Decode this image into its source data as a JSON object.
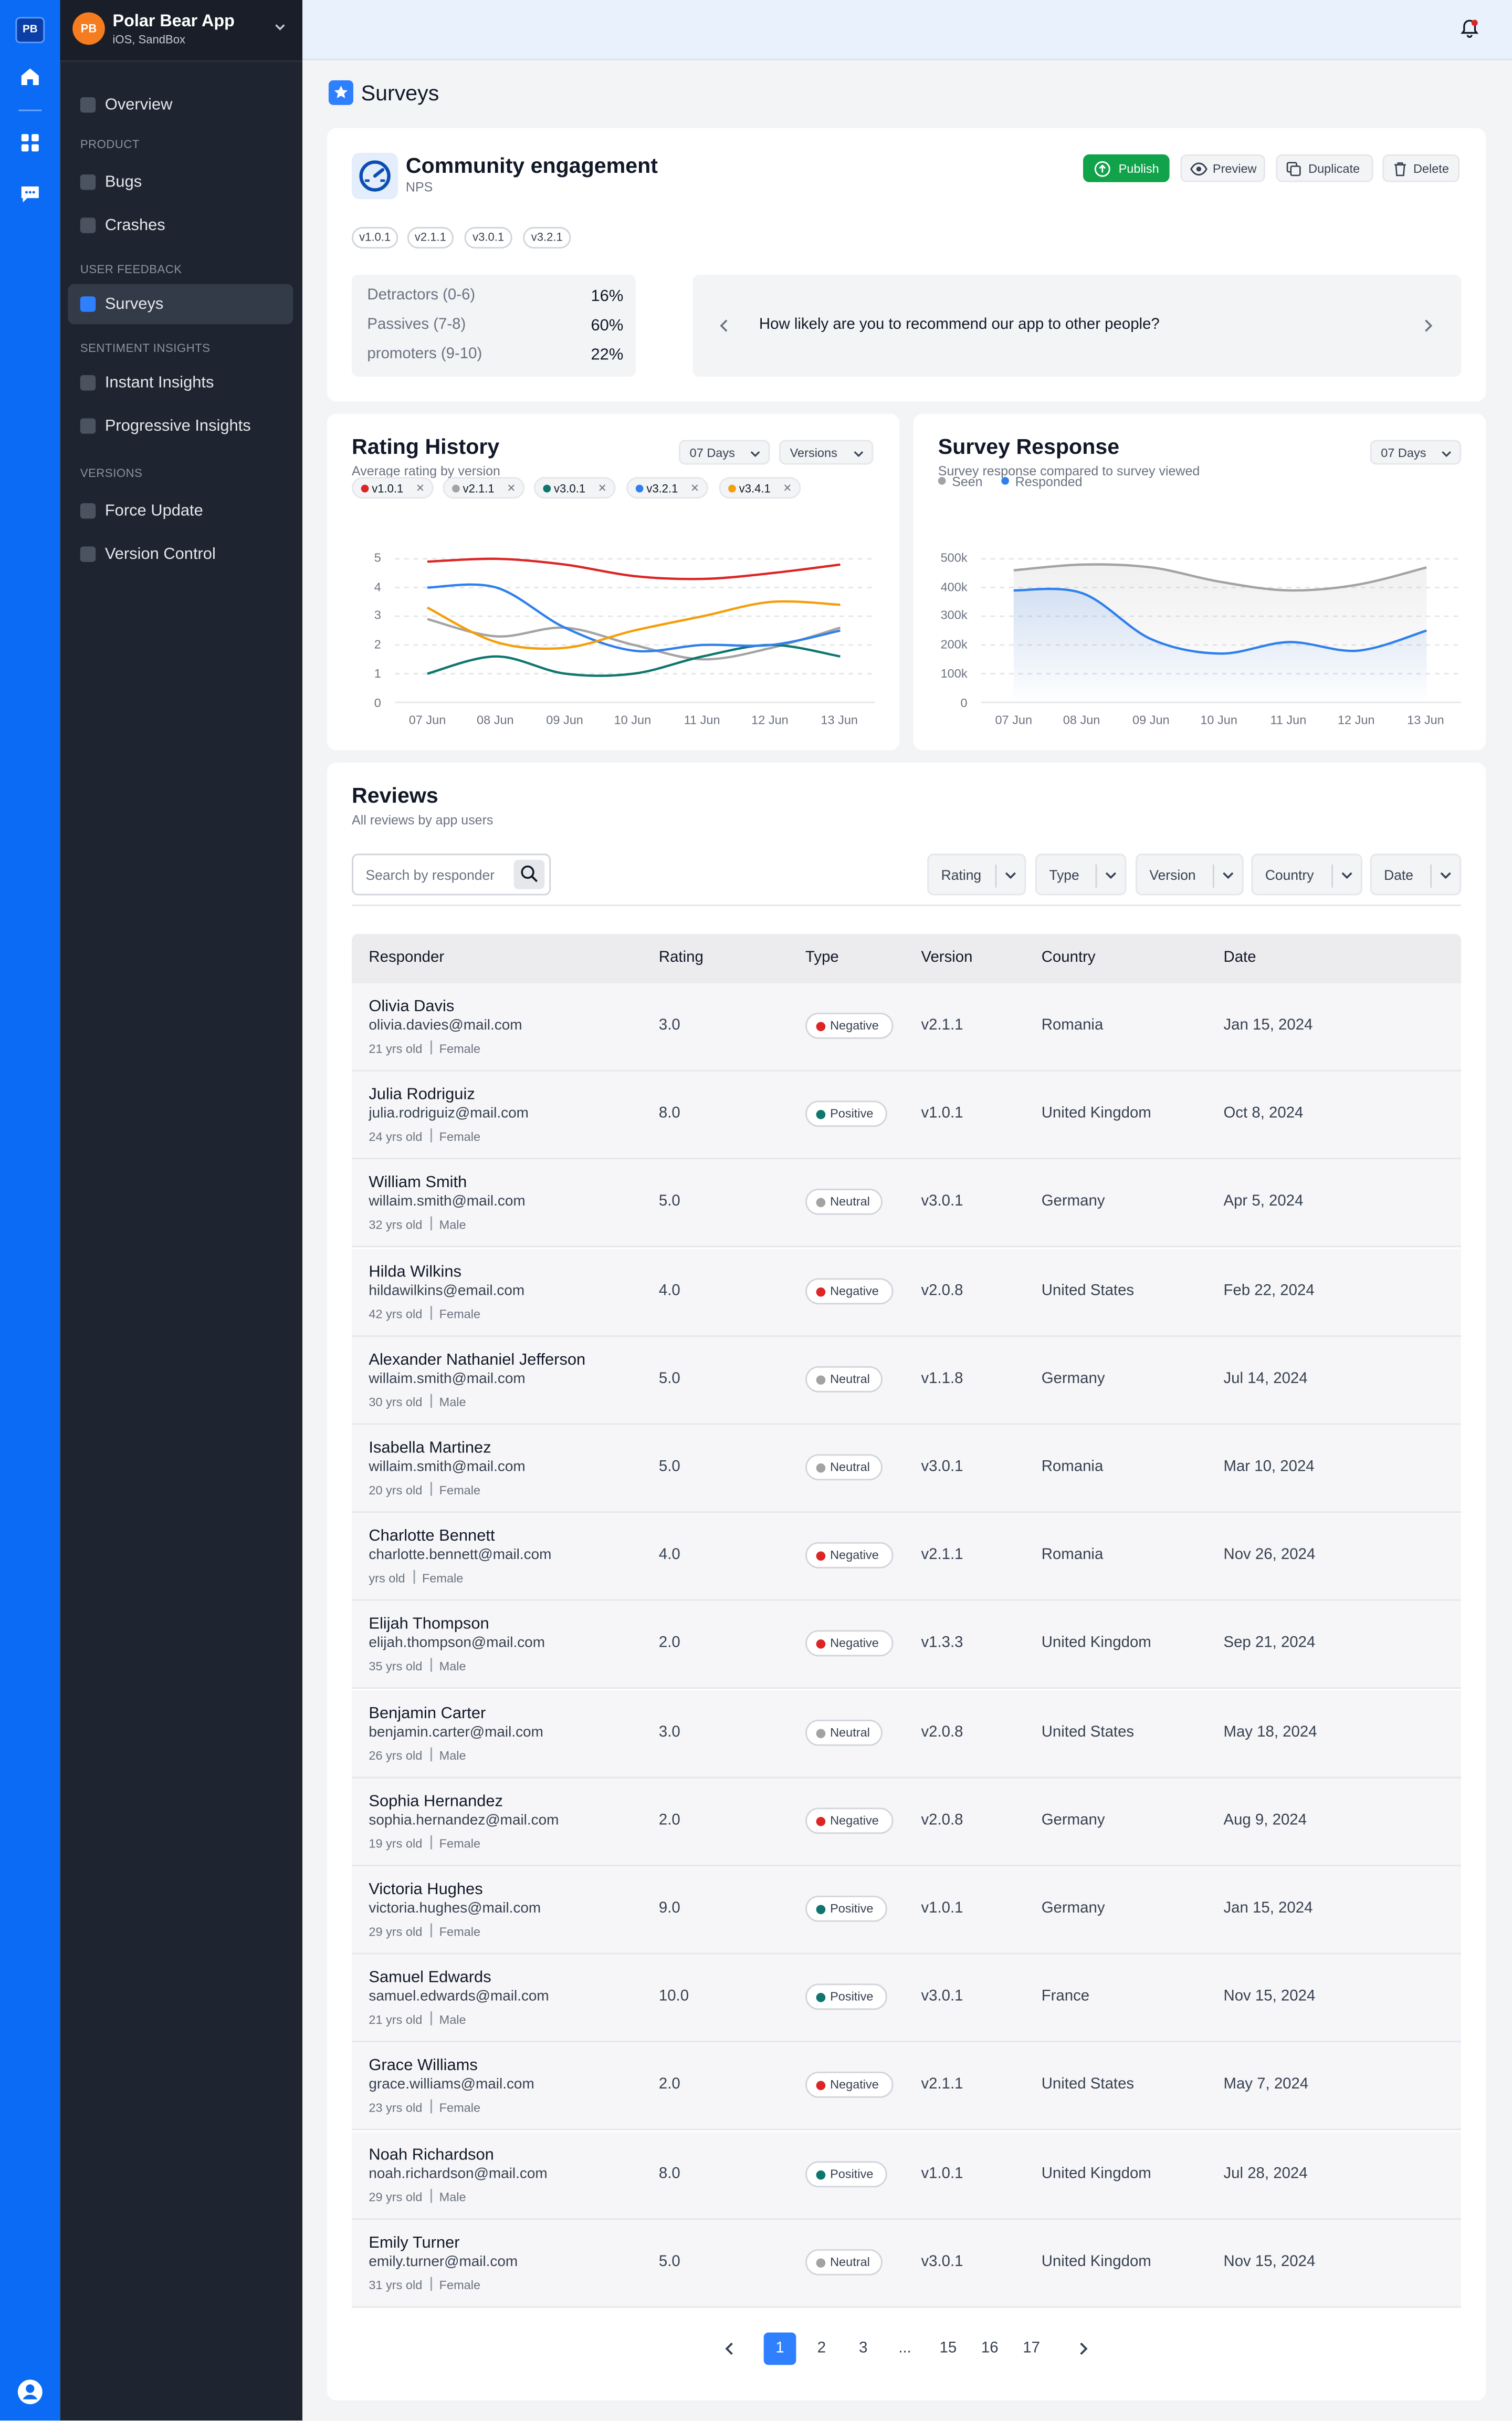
{
  "rail": {
    "logo": "PB"
  },
  "app": {
    "avatar": "PB",
    "name": "Polar Bear App",
    "sub": "iOS, SandBox"
  },
  "sidebar": {
    "overview": "Overview",
    "section_product": "PRODUCT",
    "bugs": "Bugs",
    "crashes": "Crashes",
    "section_feedback": "USER FEEDBACK",
    "surveys": "Surveys",
    "section_sentiment": "SENTIMENT INSIGHTS",
    "instant": "Instant Insights",
    "progressive": "Progressive Insights",
    "section_versions": "VERSIONS",
    "force": "Force Update",
    "control": "Version Control"
  },
  "page": {
    "title": "Surveys"
  },
  "survey": {
    "title": "Community engagement",
    "type": "NPS",
    "publish": "Publish",
    "preview": "Preview",
    "duplicate": "Duplicate",
    "delete": "Delete",
    "versions": [
      "v1.0.1",
      "v2.1.1",
      "v3.0.1",
      "v3.2.1"
    ],
    "stats": [
      {
        "label": "Detractors (0-6)",
        "value": "16%"
      },
      {
        "label": "Passives (7-8)",
        "value": "60%"
      },
      {
        "label": "promoters (9-10)",
        "value": "22%"
      }
    ],
    "question": "How likely are you to recommend our app to other people?"
  },
  "rating_history": {
    "title": "Rating History",
    "subtitle": "Average rating by version",
    "range": "07 Days",
    "versions_dd": "Versions",
    "tags": [
      {
        "label": "v1.0.1",
        "color": "#dc2626"
      },
      {
        "label": "v2.1.1",
        "color": "#a3a3a3"
      },
      {
        "label": "v3.0.1",
        "color": "#0f766e"
      },
      {
        "label": "v3.2.1",
        "color": "#2f80ed"
      },
      {
        "label": "v3.4.1",
        "color": "#f59e0b"
      }
    ],
    "yticks": [
      "5",
      "4",
      "3",
      "2",
      "1",
      "0"
    ],
    "xticks": [
      "07 Jun",
      "08 Jun",
      "09 Jun",
      "10 Jun",
      "11 Jun",
      "12 Jun",
      "13 Jun"
    ]
  },
  "survey_response": {
    "title": "Survey Response",
    "subtitle": "Survey response compared to survey viewed",
    "range": "07 Days",
    "legend_seen": "Seen",
    "legend_responded": "Responded",
    "yticks": [
      "500k",
      "400k",
      "300k",
      "200k",
      "100k",
      "0"
    ],
    "xticks": [
      "07 Jun",
      "08 Jun",
      "09 Jun",
      "10 Jun",
      "11 Jun",
      "12 Jun",
      "13 Jun"
    ]
  },
  "chart_data": [
    {
      "type": "line",
      "title": "Rating History",
      "subtitle": "Average rating by version",
      "x": [
        "07 Jun",
        "08 Jun",
        "09 Jun",
        "10 Jun",
        "11 Jun",
        "12 Jun",
        "13 Jun"
      ],
      "ylim": [
        0,
        5
      ],
      "grid": true,
      "series": [
        {
          "name": "v1.0.1",
          "color": "#dc2626",
          "values": [
            4.9,
            5.0,
            4.8,
            4.4,
            4.3,
            4.5,
            4.8
          ]
        },
        {
          "name": "v2.1.1",
          "color": "#a3a3a3",
          "values": [
            2.9,
            2.3,
            2.6,
            2.0,
            1.5,
            1.9,
            2.6
          ]
        },
        {
          "name": "v3.0.1",
          "color": "#0f766e",
          "values": [
            1.0,
            1.6,
            1.0,
            1.0,
            1.6,
            2.0,
            1.6
          ]
        },
        {
          "name": "v3.2.1",
          "color": "#2f80ed",
          "values": [
            4.0,
            4.0,
            2.6,
            1.8,
            2.0,
            2.0,
            2.5
          ]
        },
        {
          "name": "v3.4.1",
          "color": "#f59e0b",
          "values": [
            3.3,
            2.1,
            1.9,
            2.5,
            3.0,
            3.5,
            3.4
          ]
        }
      ]
    },
    {
      "type": "area",
      "title": "Survey Response",
      "subtitle": "Survey response compared to survey viewed",
      "x": [
        "07 Jun",
        "08 Jun",
        "09 Jun",
        "10 Jun",
        "11 Jun",
        "12 Jun",
        "13 Jun"
      ],
      "ylim": [
        0,
        500000
      ],
      "grid": true,
      "series": [
        {
          "name": "Seen",
          "color": "#a3a3a3",
          "values": [
            460000,
            480000,
            470000,
            420000,
            390000,
            410000,
            470000
          ]
        },
        {
          "name": "Responded",
          "color": "#2f80ed",
          "values": [
            390000,
            380000,
            220000,
            170000,
            210000,
            180000,
            250000
          ]
        }
      ]
    }
  ],
  "reviews": {
    "title": "Reviews",
    "subtitle": "All reviews by app users",
    "search_placeholder": "Search by responder",
    "filters": [
      "Rating",
      "Type",
      "Version",
      "Country",
      "Date"
    ],
    "columns": [
      "Responder",
      "Rating",
      "Type",
      "Version",
      "Country",
      "Date"
    ],
    "rows": [
      {
        "name": "Olivia Davis",
        "email": "olivia.davies@mail.com",
        "age": "21 yrs old",
        "gender": "Female",
        "rating": "3.0",
        "type": "Negative",
        "version": "v2.1.1",
        "country": "Romania",
        "date": "Jan 15, 2024"
      },
      {
        "name": "Julia Rodriguiz",
        "email": "julia.rodriguiz@mail.com",
        "age": "24 yrs old",
        "gender": "Female",
        "rating": "8.0",
        "type": "Positive",
        "version": "v1.0.1",
        "country": "United Kingdom",
        "date": "Oct 8, 2024"
      },
      {
        "name": "William Smith",
        "email": "willaim.smith@mail.com",
        "age": "32 yrs old",
        "gender": "Male",
        "rating": "5.0",
        "type": "Neutral",
        "version": "v3.0.1",
        "country": "Germany",
        "date": "Apr 5, 2024"
      },
      {
        "name": "Hilda Wilkins",
        "email": "hildawilkins@email.com",
        "age": "42 yrs old",
        "gender": "Female",
        "rating": "4.0",
        "type": "Negative",
        "version": "v2.0.8",
        "country": "United States",
        "date": "Feb 22, 2024"
      },
      {
        "name": "Alexander Nathaniel Jefferson",
        "email": "willaim.smith@mail.com",
        "age": "30 yrs old",
        "gender": "Male",
        "rating": "5.0",
        "type": "Neutral",
        "version": "v1.1.8",
        "country": "Germany",
        "date": "Jul 14, 2024"
      },
      {
        "name": "Isabella Martinez",
        "email": "willaim.smith@mail.com",
        "age": "20 yrs old",
        "gender": "Female",
        "rating": "5.0",
        "type": "Neutral",
        "version": "v3.0.1",
        "country": "Romania",
        "date": "Mar 10, 2024"
      },
      {
        "name": "Charlotte Bennett",
        "email": "charlotte.bennett@mail.com",
        "age": " yrs old",
        "gender": "Female",
        "rating": "4.0",
        "type": "Negative",
        "version": "v2.1.1",
        "country": "Romania",
        "date": "Nov 26, 2024"
      },
      {
        "name": "Elijah Thompson",
        "email": "elijah.thompson@mail.com",
        "age": "35 yrs old",
        "gender": "Male",
        "rating": "2.0",
        "type": "Negative",
        "version": "v1.3.3",
        "country": "United Kingdom",
        "date": "Sep 21, 2024"
      },
      {
        "name": "Benjamin Carter",
        "email": "benjamin.carter@mail.com",
        "age": "26 yrs old",
        "gender": "Male",
        "rating": "3.0",
        "type": "Neutral",
        "version": "v2.0.8",
        "country": "United States",
        "date": "May 18, 2024"
      },
      {
        "name": "Sophia Hernandez",
        "email": "sophia.hernandez@mail.com",
        "age": "19 yrs old",
        "gender": "Female",
        "rating": "2.0",
        "type": "Negative",
        "version": "v2.0.8",
        "country": "Germany",
        "date": "Aug 9, 2024"
      },
      {
        "name": "Victoria Hughes",
        "email": "victoria.hughes@mail.com",
        "age": "29 yrs old",
        "gender": "Female",
        "rating": "9.0",
        "type": "Positive",
        "version": "v1.0.1",
        "country": "Germany",
        "date": "Jan 15, 2024"
      },
      {
        "name": "Samuel Edwards",
        "email": "samuel.edwards@mail.com",
        "age": "21 yrs old",
        "gender": "Male",
        "rating": "10.0",
        "type": "Positive",
        "version": "v3.0.1",
        "country": "France",
        "date": "Nov 15, 2024"
      },
      {
        "name": "Grace Williams",
        "email": "grace.williams@mail.com",
        "age": "23 yrs old",
        "gender": "Female",
        "rating": "2.0",
        "type": "Negative",
        "version": "v2.1.1",
        "country": "United States",
        "date": "May 7, 2024"
      },
      {
        "name": "Noah Richardson",
        "email": "noah.richardson@mail.com",
        "age": "29 yrs old",
        "gender": "Male",
        "rating": "8.0",
        "type": "Positive",
        "version": "v1.0.1",
        "country": "United Kingdom",
        "date": "Jul 28, 2024"
      },
      {
        "name": "Emily Turner",
        "email": "emily.turner@mail.com",
        "age": "31 yrs old",
        "gender": "Female",
        "rating": "5.0",
        "type": "Neutral",
        "version": "v3.0.1",
        "country": "United Kingdom",
        "date": "Nov 15, 2024"
      }
    ],
    "type_colors": {
      "Negative": "#dc2626",
      "Positive": "#0f766e",
      "Neutral": "#a3a3a3"
    }
  },
  "pagination": {
    "pages": [
      "1",
      "2",
      "3",
      "...",
      "15",
      "16",
      "17"
    ],
    "current": "1"
  }
}
